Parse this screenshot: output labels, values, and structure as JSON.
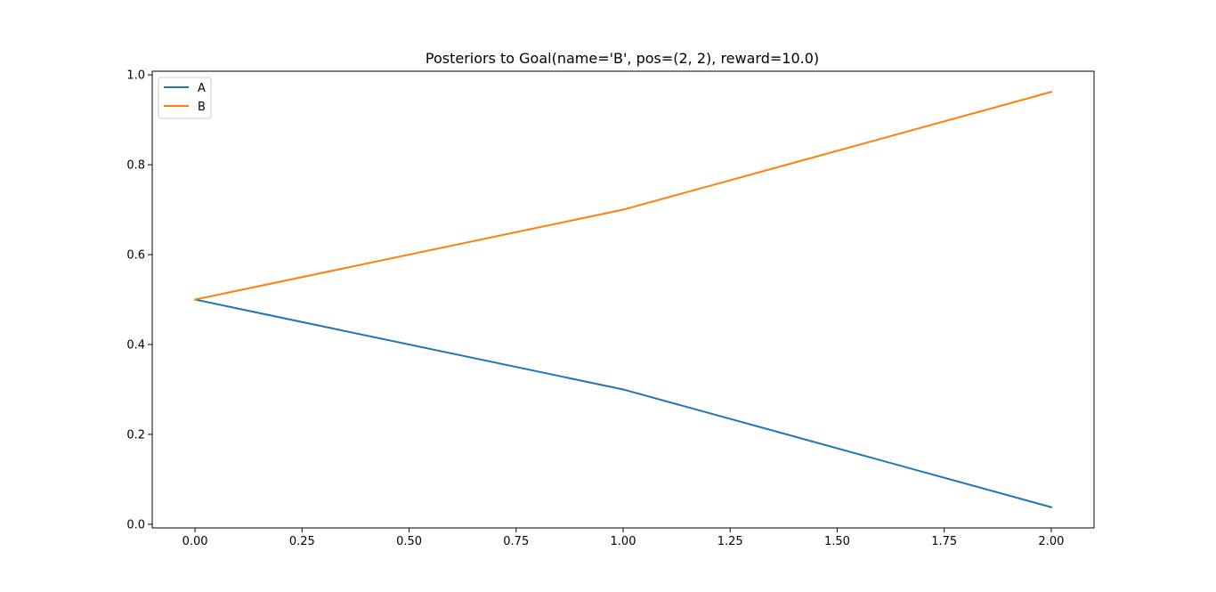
{
  "chart_data": {
    "type": "line",
    "title": "Posteriors to Goal(name='B', pos=(2, 2), reward=10.0)",
    "xlabel": "",
    "ylabel": "",
    "x": [
      0,
      1,
      2
    ],
    "series": [
      {
        "name": "A",
        "values": [
          0.5,
          0.3,
          0.038
        ],
        "color": "#1f77b4"
      },
      {
        "name": "B",
        "values": [
          0.5,
          0.7,
          0.962
        ],
        "color": "#ff7f0e"
      }
    ],
    "xlim": [
      -0.1,
      2.1
    ],
    "ylim": [
      -0.0081,
      1.0081
    ],
    "xticks": [
      0,
      0.25,
      0.5,
      0.75,
      1,
      1.25,
      1.5,
      1.75,
      2
    ],
    "xtick_labels": [
      "0.00",
      "0.25",
      "0.50",
      "0.75",
      "1.00",
      "1.25",
      "1.50",
      "1.75",
      "2.00"
    ],
    "yticks": [
      0,
      0.2,
      0.4,
      0.6,
      0.8,
      1.0
    ],
    "ytick_labels": [
      "0.0",
      "0.2",
      "0.4",
      "0.6",
      "0.8",
      "1.0"
    ],
    "grid": false,
    "legend_position": "upper-left"
  }
}
